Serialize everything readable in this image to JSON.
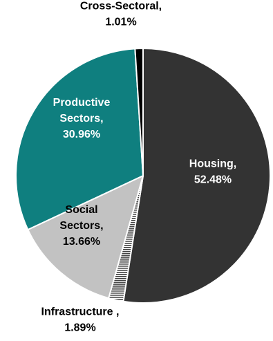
{
  "chart_data": {
    "type": "pie",
    "title": "",
    "start_angle_deg": 0,
    "direction": "clockwise",
    "slices": [
      {
        "name": "Housing",
        "label_lines": [
          "Housing,",
          "52.48%"
        ],
        "value": 52.48,
        "color": "#333333",
        "pattern": "solid",
        "label_color": "#ffffff",
        "label_position": "inside"
      },
      {
        "name": "Infrastructure",
        "label_lines": [
          "Infrastructure ,",
          "1.89%"
        ],
        "value": 1.89,
        "color": "#ffffff",
        "pattern": "horizontal-stripes",
        "stripe_color": "#444444",
        "label_color": "#000000",
        "label_position": "outside-bottom"
      },
      {
        "name": "Social Sectors",
        "label_lines": [
          "Social",
          "Sectors,",
          "13.66%"
        ],
        "value": 13.66,
        "color": "#c2c2c2",
        "pattern": "solid",
        "label_color": "#000000",
        "label_position": "inside"
      },
      {
        "name": "Productive Sectors",
        "label_lines": [
          "Productive",
          "Sectors,",
          "30.96%"
        ],
        "value": 30.96,
        "color": "#0f7f7f",
        "pattern": "solid",
        "label_color": "#ffffff",
        "label_position": "inside"
      },
      {
        "name": "Cross-Sectoral",
        "label_lines": [
          "Cross-Sectoral,",
          "1.01%"
        ],
        "value": 1.01,
        "color": "#000000",
        "pattern": "solid",
        "label_color": "#000000",
        "label_position": "outside-top"
      }
    ]
  }
}
